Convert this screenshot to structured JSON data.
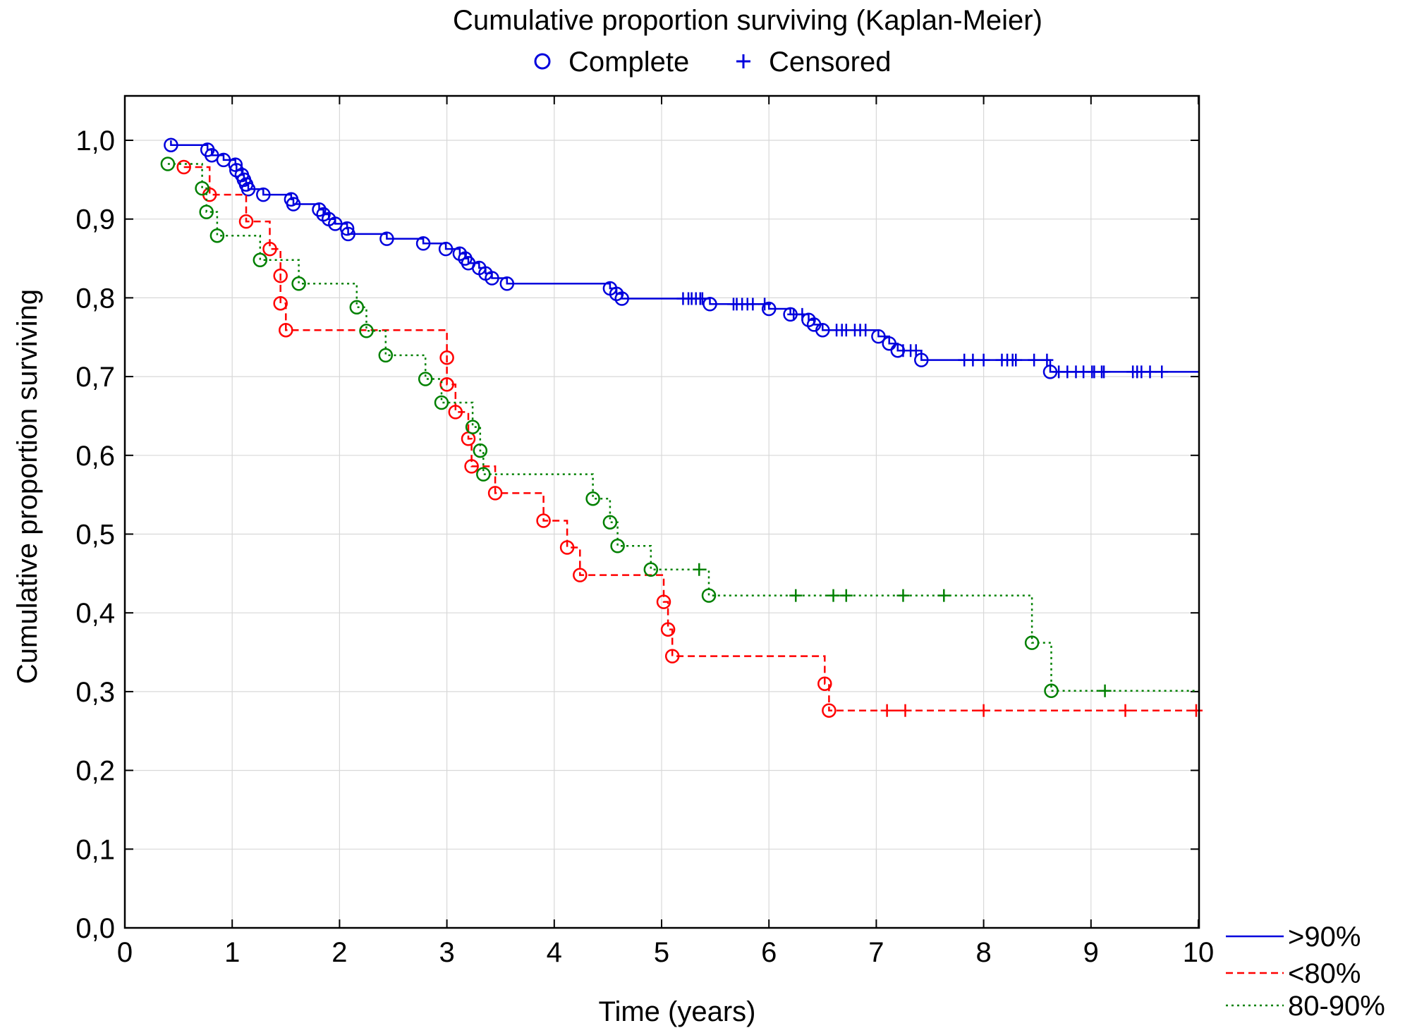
{
  "chart_data": {
    "type": "line",
    "subtype": "kaplan-meier",
    "title": "Cumulative proportion surviving (Kaplan-Meier)",
    "marker_legend": {
      "complete_label": "Complete",
      "censored_label": "Censored",
      "color": "#0000dd"
    },
    "xlabel": "Time (years)",
    "ylabel": "Cumulative proportion surviving",
    "xlim": [
      0,
      10
    ],
    "ylim": [
      0,
      1.05
    ],
    "xticks": [
      0,
      1,
      2,
      3,
      4,
      5,
      6,
      7,
      8,
      9,
      10
    ],
    "xtick_labels": [
      "0",
      "1",
      "2",
      "3",
      "4",
      "5",
      "6",
      "7",
      "8",
      "9",
      "10"
    ],
    "yticks": [
      0,
      0.1,
      0.2,
      0.3,
      0.4,
      0.5,
      0.6,
      0.7,
      0.8,
      0.9,
      1.0
    ],
    "ytick_labels": [
      "0,0",
      "0,1",
      "0,2",
      "0,3",
      "0,4",
      "0,5",
      "0,6",
      "0,7",
      "0,8",
      "0,9",
      "1,0"
    ],
    "grid": true,
    "legend_position": "bottom-right-outside",
    "series": [
      {
        "name": ">90%",
        "color": "#0000dd",
        "line_style": "solid",
        "start": 1.0,
        "end_x": 10,
        "events": [
          [
            0.43,
            0.994
          ],
          [
            0.77,
            0.988
          ],
          [
            0.81,
            0.981
          ],
          [
            0.92,
            0.975
          ],
          [
            1.03,
            0.969
          ],
          [
            1.04,
            0.962
          ],
          [
            1.09,
            0.956
          ],
          [
            1.11,
            0.95
          ],
          [
            1.13,
            0.944
          ],
          [
            1.15,
            0.938
          ],
          [
            1.29,
            0.931
          ],
          [
            1.55,
            0.925
          ],
          [
            1.57,
            0.919
          ],
          [
            1.81,
            0.912
          ],
          [
            1.85,
            0.906
          ],
          [
            1.9,
            0.9
          ],
          [
            1.96,
            0.894
          ],
          [
            2.07,
            0.888
          ],
          [
            2.08,
            0.881
          ],
          [
            2.44,
            0.875
          ],
          [
            2.78,
            0.869
          ],
          [
            2.99,
            0.862
          ],
          [
            3.12,
            0.856
          ],
          [
            3.17,
            0.85
          ],
          [
            3.2,
            0.844
          ],
          [
            3.3,
            0.838
          ],
          [
            3.36,
            0.831
          ],
          [
            3.42,
            0.825
          ],
          [
            3.56,
            0.818
          ],
          [
            4.52,
            0.812
          ],
          [
            4.58,
            0.805
          ],
          [
            4.63,
            0.799
          ],
          [
            5.45,
            0.792
          ],
          [
            6.0,
            0.786
          ],
          [
            6.2,
            0.779
          ],
          [
            6.37,
            0.772
          ],
          [
            6.42,
            0.766
          ],
          [
            6.5,
            0.759
          ],
          [
            7.02,
            0.751
          ],
          [
            7.12,
            0.742
          ],
          [
            7.2,
            0.733
          ],
          [
            7.42,
            0.721
          ],
          [
            8.62,
            0.706
          ]
        ],
        "censored": [
          [
            5.2,
            0.799
          ],
          [
            5.25,
            0.799
          ],
          [
            5.28,
            0.799
          ],
          [
            5.32,
            0.799
          ],
          [
            5.36,
            0.799
          ],
          [
            5.38,
            0.799
          ],
          [
            5.67,
            0.792
          ],
          [
            5.7,
            0.792
          ],
          [
            5.75,
            0.792
          ],
          [
            5.8,
            0.792
          ],
          [
            5.85,
            0.792
          ],
          [
            5.96,
            0.792
          ],
          [
            6.23,
            0.779
          ],
          [
            6.31,
            0.779
          ],
          [
            6.63,
            0.759
          ],
          [
            6.68,
            0.759
          ],
          [
            6.72,
            0.759
          ],
          [
            6.8,
            0.759
          ],
          [
            6.85,
            0.759
          ],
          [
            6.9,
            0.759
          ],
          [
            7.25,
            0.733
          ],
          [
            7.32,
            0.733
          ],
          [
            7.37,
            0.733
          ],
          [
            7.82,
            0.721
          ],
          [
            7.9,
            0.721
          ],
          [
            8.0,
            0.721
          ],
          [
            8.17,
            0.721
          ],
          [
            8.22,
            0.721
          ],
          [
            8.27,
            0.721
          ],
          [
            8.3,
            0.721
          ],
          [
            8.47,
            0.721
          ],
          [
            8.59,
            0.721
          ],
          [
            8.7,
            0.706
          ],
          [
            8.78,
            0.706
          ],
          [
            8.86,
            0.706
          ],
          [
            8.93,
            0.706
          ],
          [
            9.01,
            0.706
          ],
          [
            9.03,
            0.706
          ],
          [
            9.1,
            0.706
          ],
          [
            9.12,
            0.706
          ],
          [
            9.39,
            0.706
          ],
          [
            9.43,
            0.706
          ],
          [
            9.47,
            0.706
          ],
          [
            9.55,
            0.706
          ],
          [
            9.66,
            0.706
          ]
        ]
      },
      {
        "name": "<80%",
        "color": "#ff0000",
        "line_style": "dashed",
        "start": 0.966,
        "end_x": 10,
        "events": [
          [
            0.55,
            0.966
          ],
          [
            0.79,
            0.931
          ],
          [
            1.13,
            0.897
          ],
          [
            1.35,
            0.862
          ],
          [
            1.45,
            0.828
          ],
          [
            1.45,
            0.793
          ],
          [
            1.5,
            0.759
          ],
          [
            3.0,
            0.724
          ],
          [
            3.0,
            0.69
          ],
          [
            3.08,
            0.655
          ],
          [
            3.2,
            0.621
          ],
          [
            3.23,
            0.586
          ],
          [
            3.45,
            0.552
          ],
          [
            3.9,
            0.517
          ],
          [
            4.12,
            0.483
          ],
          [
            4.24,
            0.448
          ],
          [
            5.02,
            0.414
          ],
          [
            5.06,
            0.379
          ],
          [
            5.1,
            0.345
          ],
          [
            6.52,
            0.31
          ],
          [
            6.56,
            0.276
          ]
        ],
        "censored": [
          [
            7.1,
            0.276
          ],
          [
            7.27,
            0.276
          ],
          [
            8.0,
            0.276
          ],
          [
            9.32,
            0.276
          ],
          [
            9.98,
            0.276
          ]
        ]
      },
      {
        "name": "80-90%",
        "color": "#008000",
        "line_style": "dotted",
        "start": 0.97,
        "end_x": 10,
        "events": [
          [
            0.4,
            0.97
          ],
          [
            0.72,
            0.939
          ],
          [
            0.76,
            0.909
          ],
          [
            0.86,
            0.879
          ],
          [
            1.26,
            0.848
          ],
          [
            1.62,
            0.818
          ],
          [
            2.16,
            0.788
          ],
          [
            2.25,
            0.758
          ],
          [
            2.43,
            0.727
          ],
          [
            2.8,
            0.697
          ],
          [
            2.95,
            0.667
          ],
          [
            3.24,
            0.636
          ],
          [
            3.31,
            0.606
          ],
          [
            3.34,
            0.576
          ],
          [
            4.36,
            0.545
          ],
          [
            4.52,
            0.515
          ],
          [
            4.59,
            0.485
          ],
          [
            4.9,
            0.455
          ],
          [
            5.44,
            0.422
          ],
          [
            8.45,
            0.362
          ],
          [
            8.63,
            0.301
          ]
        ],
        "censored": [
          [
            5.35,
            0.455
          ],
          [
            6.25,
            0.422
          ],
          [
            6.6,
            0.422
          ],
          [
            6.72,
            0.422
          ],
          [
            7.25,
            0.422
          ],
          [
            7.63,
            0.422
          ],
          [
            9.13,
            0.301
          ]
        ]
      }
    ]
  }
}
